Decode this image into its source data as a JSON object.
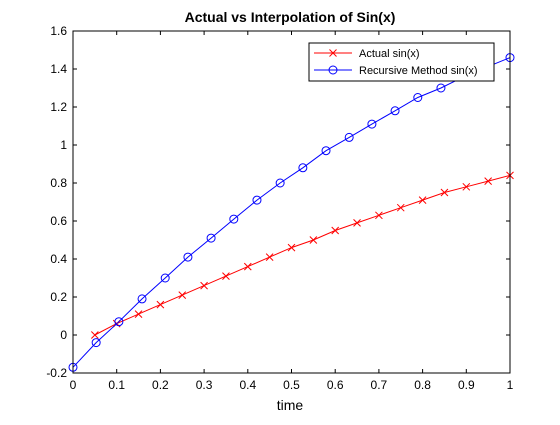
{
  "chart_data": {
    "type": "line",
    "title": "Actual vs Interpolation of Sin(x)",
    "xlabel": "time",
    "ylabel": "",
    "xlim": [
      0,
      1
    ],
    "ylim": [
      -0.2,
      1.6
    ],
    "xticks": [
      "0",
      "0.1",
      "0.2",
      "0.3",
      "0.4",
      "0.5",
      "0.6",
      "0.7",
      "0.8",
      "0.9",
      "1"
    ],
    "yticks": [
      "-0.2",
      "0",
      "0.2",
      "0.4",
      "0.6",
      "0.8",
      "1",
      "1.2",
      "1.4",
      "1.6"
    ],
    "grid": false,
    "legend_position": "top-right",
    "series": [
      {
        "name": "Actual sin(x)",
        "color": "#ff0000",
        "marker": "x",
        "x": [
          0.05,
          0.1,
          0.15,
          0.2,
          0.25,
          0.3,
          0.35,
          0.4,
          0.45,
          0.5,
          0.55,
          0.6,
          0.65,
          0.7,
          0.75,
          0.8,
          0.85,
          0.9,
          0.95,
          1.0
        ],
        "y": [
          0.0,
          0.06,
          0.11,
          0.16,
          0.21,
          0.26,
          0.31,
          0.36,
          0.41,
          0.46,
          0.5,
          0.55,
          0.59,
          0.63,
          0.67,
          0.71,
          0.75,
          0.78,
          0.81,
          0.84
        ]
      },
      {
        "name": "Recursive Method sin(x)",
        "color": "#0000ff",
        "marker": "o",
        "x": [
          0.0,
          0.053,
          0.105,
          0.158,
          0.211,
          0.263,
          0.316,
          0.368,
          0.421,
          0.474,
          0.526,
          0.579,
          0.632,
          0.684,
          0.737,
          0.789,
          0.842,
          0.895,
          0.947,
          1.0
        ],
        "y": [
          -0.17,
          -0.04,
          0.07,
          0.19,
          0.3,
          0.41,
          0.51,
          0.61,
          0.71,
          0.8,
          0.88,
          0.97,
          1.04,
          1.11,
          1.18,
          1.25,
          1.3,
          1.36,
          1.41,
          1.46
        ]
      }
    ]
  }
}
